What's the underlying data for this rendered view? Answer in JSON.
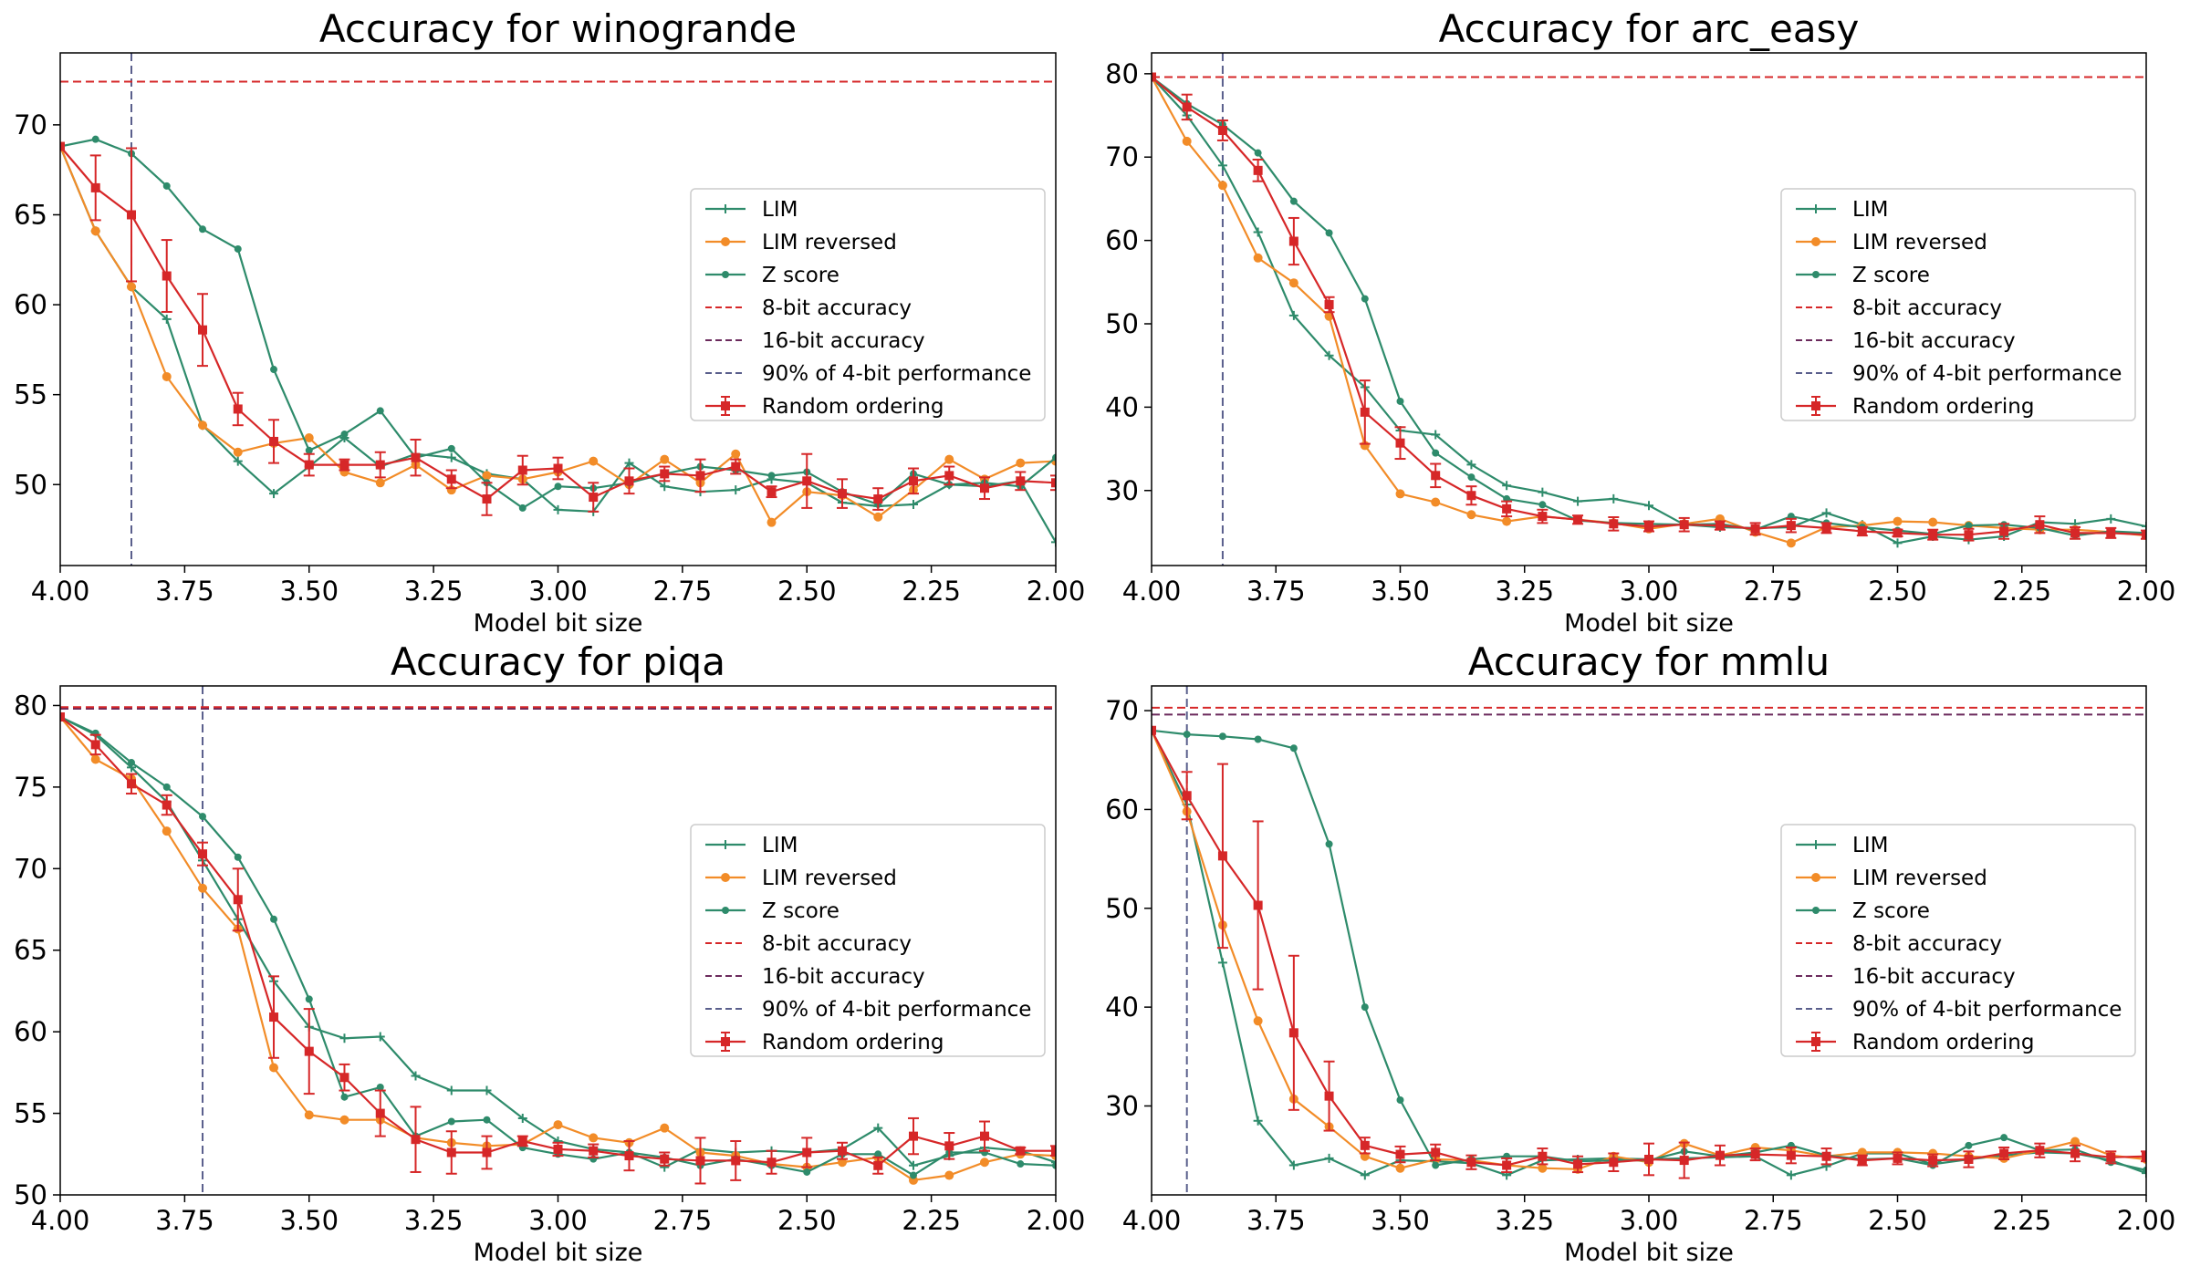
{
  "colors": {
    "lim": "#2e8b6b",
    "lim_reversed": "#f28c28",
    "z_score": "#2e8b6b",
    "bit8": "#d62728",
    "bit16": "#6b2a5c",
    "ninety": "#5a5f8c",
    "random": "#d62728"
  },
  "legend_entries": [
    "LIM",
    "LIM reversed",
    "Z score",
    "8-bit accuracy",
    "16-bit accuracy",
    "90% of 4-bit performance",
    "Random ordering"
  ],
  "chart_data": [
    {
      "type": "line",
      "title": "Accuracy for winogrande",
      "xlabel": "Model bit size",
      "ylabel": "",
      "xlim": [
        4.0,
        2.0
      ],
      "ylim": [
        45.5,
        74
      ],
      "xticks": [
        "4.00",
        "3.75",
        "3.50",
        "3.25",
        "3.00",
        "2.75",
        "2.50",
        "2.25",
        "2.00"
      ],
      "yticks": [
        "50",
        "55",
        "60",
        "65",
        "70"
      ],
      "ytick_values": [
        50,
        55,
        60,
        65,
        70
      ],
      "legend_position": "center-right",
      "hlines": {
        "bit8": 72.4,
        "bit16": 72.4
      },
      "vline_90pct": 3.857,
      "x": [
        4.0,
        3.929,
        3.857,
        3.786,
        3.714,
        3.643,
        3.571,
        3.5,
        3.429,
        3.357,
        3.286,
        3.214,
        3.143,
        3.071,
        3.0,
        2.929,
        2.857,
        2.786,
        2.714,
        2.643,
        2.571,
        2.5,
        2.429,
        2.357,
        2.286,
        2.214,
        2.143,
        2.071,
        2.0
      ],
      "series": [
        {
          "name": "LIM",
          "values": [
            68.8,
            64.1,
            61.0,
            59.2,
            53.3,
            51.3,
            49.5,
            51.0,
            52.6,
            51.0,
            51.7,
            51.5,
            50.6,
            50.3,
            48.6,
            48.5,
            51.2,
            49.9,
            49.6,
            49.7,
            50.3,
            50.1,
            49.0,
            48.8,
            48.9,
            50.0,
            49.9,
            50.2,
            46.8
          ]
        },
        {
          "name": "LIM reversed",
          "values": [
            68.8,
            64.1,
            61.0,
            56.0,
            53.3,
            51.8,
            52.3,
            52.6,
            50.7,
            50.1,
            51.1,
            49.7,
            50.5,
            50.3,
            50.7,
            51.3,
            50.0,
            51.4,
            50.1,
            51.7,
            47.9,
            49.6,
            49.4,
            48.2,
            49.7,
            51.4,
            50.3,
            51.2,
            51.3
          ]
        },
        {
          "name": "Z score",
          "values": [
            68.8,
            69.2,
            68.4,
            66.6,
            64.2,
            63.1,
            56.4,
            51.9,
            52.8,
            54.1,
            51.5,
            52.0,
            50.1,
            48.7,
            49.9,
            49.8,
            50.1,
            50.6,
            51.0,
            50.8,
            50.5,
            50.7,
            49.6,
            48.9,
            50.6,
            50.0,
            50.1,
            49.9,
            51.5
          ]
        },
        {
          "name": "Random ordering",
          "values": [
            68.8,
            66.5,
            65.0,
            61.6,
            58.6,
            54.2,
            52.4,
            51.1,
            51.1,
            51.1,
            51.5,
            50.3,
            49.2,
            50.8,
            50.9,
            49.3,
            50.2,
            50.6,
            50.5,
            51.0,
            49.6,
            50.2,
            49.5,
            49.2,
            50.2,
            50.5,
            49.8,
            50.2,
            50.1
          ],
          "errors": [
            0,
            1.8,
            3.7,
            2.0,
            2.0,
            0.9,
            1.2,
            0.6,
            0.3,
            0.7,
            1.0,
            0.5,
            0.9,
            0.8,
            0.6,
            0.8,
            0.7,
            0.4,
            0.9,
            0.4,
            0.3,
            1.5,
            0.8,
            0.6,
            0.7,
            0.5,
            0.6,
            0.5,
            0.4
          ]
        }
      ]
    },
    {
      "type": "line",
      "title": "Accuracy for arc_easy",
      "xlabel": "Model bit size",
      "ylabel": "",
      "xlim": [
        4.0,
        2.0
      ],
      "ylim": [
        21,
        82.5
      ],
      "xticks": [
        "4.00",
        "3.75",
        "3.50",
        "3.25",
        "3.00",
        "2.75",
        "2.50",
        "2.25",
        "2.00"
      ],
      "yticks": [
        "30",
        "40",
        "50",
        "60",
        "70",
        "80"
      ],
      "ytick_values": [
        30,
        40,
        50,
        60,
        70,
        80
      ],
      "legend_position": "center-right",
      "hlines": {
        "bit8": 79.6,
        "bit16": 79.6
      },
      "vline_90pct": 3.857,
      "x": [
        4.0,
        3.929,
        3.857,
        3.786,
        3.714,
        3.643,
        3.571,
        3.5,
        3.429,
        3.357,
        3.286,
        3.214,
        3.143,
        3.071,
        3.0,
        2.929,
        2.857,
        2.786,
        2.714,
        2.643,
        2.571,
        2.5,
        2.429,
        2.357,
        2.286,
        2.214,
        2.143,
        2.071,
        2.0
      ],
      "series": [
        {
          "name": "LIM",
          "values": [
            79.6,
            75.0,
            69.0,
            61.0,
            51.0,
            46.2,
            42.4,
            37.2,
            36.7,
            33.1,
            30.6,
            29.8,
            28.7,
            29.0,
            28.2,
            25.9,
            25.6,
            25.5,
            25.6,
            27.3,
            25.9,
            23.7,
            24.5,
            24.1,
            24.5,
            26.2,
            26.0,
            26.6,
            25.7
          ]
        },
        {
          "name": "LIM reversed",
          "values": [
            79.6,
            71.9,
            66.6,
            57.9,
            54.9,
            50.9,
            35.4,
            29.6,
            28.6,
            27.1,
            26.3,
            26.9,
            26.5,
            26.1,
            25.4,
            26.0,
            26.6,
            25.0,
            23.7,
            25.6,
            25.8,
            26.3,
            26.2,
            25.8,
            25.5,
            25.3,
            25.3,
            25.0,
            24.6
          ]
        },
        {
          "name": "Z score",
          "values": [
            79.6,
            76.4,
            73.9,
            70.5,
            64.7,
            60.9,
            53.0,
            40.7,
            34.5,
            31.6,
            29.0,
            28.3,
            26.4,
            26.1,
            26.0,
            25.9,
            26.0,
            25.3,
            26.9,
            26.1,
            25.6,
            25.2,
            24.8,
            25.8,
            25.9,
            25.5,
            24.6,
            25.1,
            24.9
          ]
        },
        {
          "name": "Random ordering",
          "values": [
            79.6,
            76.0,
            73.2,
            68.4,
            59.9,
            52.3,
            39.4,
            35.7,
            31.8,
            29.4,
            27.8,
            26.9,
            26.5,
            26.0,
            25.7,
            25.9,
            25.8,
            25.4,
            25.8,
            25.5,
            25.1,
            24.9,
            24.7,
            24.7,
            25.1,
            25.9,
            24.9,
            24.9,
            24.7
          ],
          "errors": [
            0,
            1.5,
            1.2,
            1.3,
            2.8,
            0.9,
            3.8,
            1.9,
            1.4,
            1.1,
            0.9,
            0.8,
            0.5,
            0.8,
            0.6,
            0.8,
            0.5,
            0.7,
            0.8,
            0.6,
            0.5,
            0.4,
            0.6,
            0.7,
            0.9,
            1.0,
            0.7,
            0.6,
            0.5
          ]
        }
      ]
    },
    {
      "type": "line",
      "title": "Accuracy for piqa",
      "xlabel": "Model bit size",
      "ylabel": "",
      "xlim": [
        4.0,
        2.0
      ],
      "ylim": [
        50,
        81.2
      ],
      "xticks": [
        "4.00",
        "3.75",
        "3.50",
        "3.25",
        "3.00",
        "2.75",
        "2.50",
        "2.25",
        "2.00"
      ],
      "yticks": [
        "50",
        "55",
        "60",
        "65",
        "70",
        "75",
        "80"
      ],
      "ytick_values": [
        50,
        55,
        60,
        65,
        70,
        75,
        80
      ],
      "legend_position": "center-right",
      "hlines": {
        "bit8": 79.9,
        "bit16": 79.8
      },
      "vline_90pct": 3.714,
      "x": [
        4.0,
        3.929,
        3.857,
        3.786,
        3.714,
        3.643,
        3.571,
        3.5,
        3.429,
        3.357,
        3.286,
        3.214,
        3.143,
        3.071,
        3.0,
        2.929,
        2.857,
        2.786,
        2.714,
        2.643,
        2.571,
        2.5,
        2.429,
        2.357,
        2.286,
        2.214,
        2.143,
        2.071,
        2.0
      ],
      "series": [
        {
          "name": "LIM",
          "values": [
            79.3,
            78.2,
            76.2,
            74.1,
            70.5,
            66.9,
            63.1,
            60.3,
            59.6,
            59.7,
            57.3,
            56.4,
            56.4,
            54.7,
            53.3,
            52.8,
            52.6,
            51.7,
            52.8,
            52.6,
            52.7,
            52.6,
            52.8,
            54.1,
            51.8,
            52.4,
            52.9,
            52.7,
            52.0
          ]
        },
        {
          "name": "LIM reversed",
          "values": [
            79.3,
            76.7,
            75.5,
            72.3,
            68.8,
            66.3,
            57.8,
            54.9,
            54.6,
            54.6,
            53.5,
            53.2,
            53.0,
            53.1,
            54.3,
            53.5,
            53.2,
            54.1,
            52.6,
            52.4,
            51.9,
            51.7,
            52.0,
            52.3,
            50.9,
            51.2,
            52.0,
            52.5,
            52.4
          ]
        },
        {
          "name": "Z score",
          "values": [
            79.3,
            78.3,
            76.5,
            75.0,
            73.2,
            70.7,
            66.9,
            62.0,
            56.0,
            56.6,
            53.6,
            54.5,
            54.6,
            52.9,
            52.5,
            52.2,
            52.6,
            52.3,
            51.8,
            52.2,
            51.8,
            51.4,
            52.5,
            52.5,
            51.2,
            52.6,
            52.6,
            51.9,
            51.8
          ]
        },
        {
          "name": "Random ordering",
          "values": [
            79.3,
            77.6,
            75.2,
            73.9,
            70.9,
            68.1,
            60.9,
            58.8,
            57.2,
            55.0,
            53.4,
            52.6,
            52.6,
            53.3,
            52.8,
            52.7,
            52.4,
            52.2,
            52.1,
            52.1,
            52.0,
            52.6,
            52.7,
            51.8,
            53.6,
            53.0,
            53.6,
            52.7,
            52.7
          ],
          "errors": [
            0,
            0.6,
            0.6,
            0.6,
            0.7,
            1.9,
            2.5,
            2.6,
            0.8,
            1.4,
            2.0,
            1.3,
            1.0,
            0.3,
            0.4,
            0.4,
            0.9,
            0.4,
            1.4,
            1.2,
            0.7,
            0.9,
            0.5,
            0.5,
            1.1,
            0.8,
            0.9,
            0.2,
            0.3
          ]
        }
      ]
    },
    {
      "type": "line",
      "title": "Accuracy for mmlu",
      "xlabel": "Model bit size",
      "ylabel": "",
      "xlim": [
        4.0,
        2.0
      ],
      "ylim": [
        21,
        72.5
      ],
      "xticks": [
        "4.00",
        "3.75",
        "3.50",
        "3.25",
        "3.00",
        "2.75",
        "2.50",
        "2.25",
        "2.00"
      ],
      "yticks": [
        "30",
        "40",
        "50",
        "60",
        "70"
      ],
      "ytick_values": [
        30,
        40,
        50,
        60,
        70
      ],
      "legend_position": "center-right",
      "hlines": {
        "bit8": 70.3,
        "bit16": 69.6
      },
      "vline_90pct": 3.929,
      "x": [
        4.0,
        3.929,
        3.857,
        3.786,
        3.714,
        3.643,
        3.571,
        3.5,
        3.429,
        3.357,
        3.286,
        3.214,
        3.143,
        3.071,
        3.0,
        2.929,
        2.857,
        2.786,
        2.714,
        2.643,
        2.571,
        2.5,
        2.429,
        2.357,
        2.286,
        2.214,
        2.143,
        2.071,
        2.0
      ],
      "series": [
        {
          "name": "LIM",
          "values": [
            68.0,
            60.5,
            44.5,
            28.5,
            24.0,
            24.7,
            23.0,
            24.5,
            24.4,
            24.2,
            23.0,
            24.5,
            24.6,
            24.7,
            24.6,
            24.7,
            24.8,
            24.9,
            23.0,
            23.9,
            25.2,
            25.2,
            24.1,
            24.6,
            25.0,
            25.3,
            25.2,
            24.5,
            23.2
          ]
        },
        {
          "name": "LIM reversed",
          "values": [
            68.0,
            59.8,
            48.3,
            38.6,
            30.7,
            27.9,
            24.9,
            23.7,
            24.6,
            24.5,
            24.0,
            23.7,
            23.6,
            24.9,
            24.3,
            26.2,
            25.0,
            25.8,
            25.5,
            24.9,
            25.3,
            25.3,
            25.2,
            24.9,
            24.7,
            25.5,
            26.4,
            25.0,
            24.6
          ]
        },
        {
          "name": "Z score",
          "values": [
            68.0,
            67.6,
            67.4,
            67.1,
            66.2,
            56.5,
            40.0,
            30.6,
            24.0,
            24.6,
            24.9,
            24.9,
            24.4,
            24.5,
            24.5,
            25.4,
            24.9,
            25.3,
            26.0,
            25.0,
            24.6,
            24.7,
            24.0,
            26.0,
            26.8,
            25.5,
            25.6,
            24.3,
            23.5
          ]
        },
        {
          "name": "Random ordering",
          "values": [
            68.0,
            61.4,
            55.3,
            50.3,
            37.4,
            31.0,
            26.0,
            25.1,
            25.3,
            24.3,
            24.0,
            24.9,
            24.1,
            24.3,
            24.6,
            24.5,
            25.0,
            25.1,
            25.0,
            24.9,
            24.5,
            24.7,
            24.5,
            24.6,
            25.2,
            25.5,
            25.2,
            24.8,
            24.9
          ],
          "errors": [
            0,
            2.4,
            9.3,
            8.5,
            7.8,
            3.5,
            0.8,
            0.8,
            0.8,
            0.7,
            0.7,
            0.8,
            0.8,
            0.9,
            1.6,
            1.8,
            1.0,
            0.6,
            0.8,
            0.8,
            0.5,
            0.6,
            0.6,
            0.8,
            0.6,
            0.7,
            0.8,
            0.6,
            0.5
          ]
        }
      ]
    }
  ]
}
